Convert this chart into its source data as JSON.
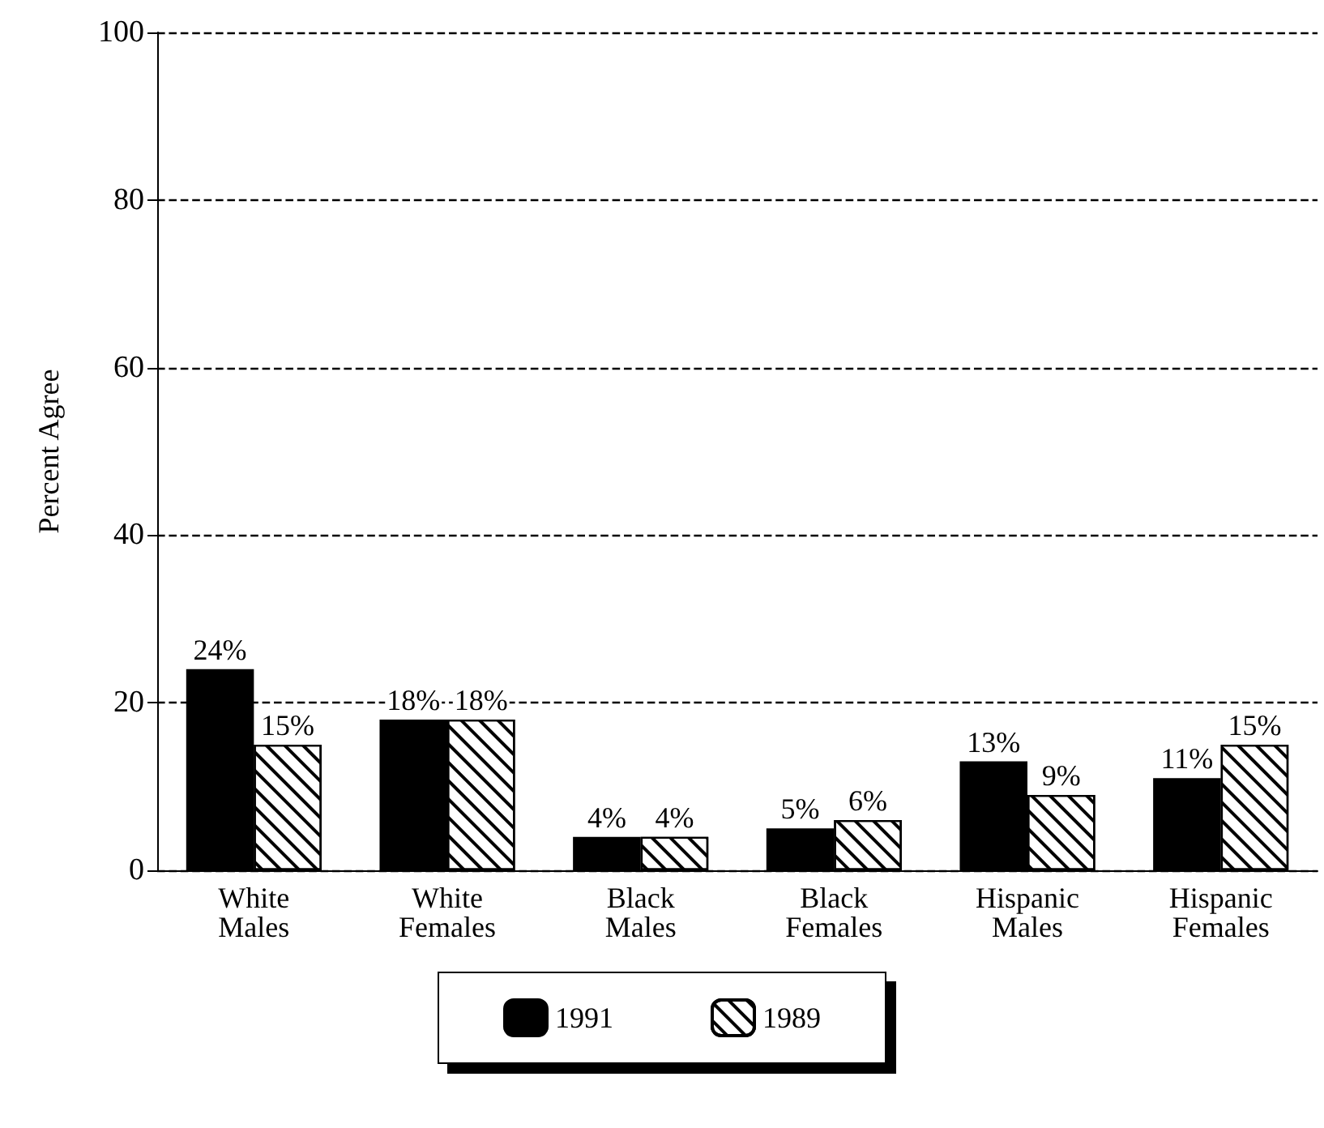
{
  "chart_data": {
    "type": "bar",
    "ylabel": "Percent Agree",
    "categories": [
      "White Males",
      "White Females",
      "Black Males",
      "Black Females",
      "Hispanic Males",
      "Hispanic Females"
    ],
    "series": [
      {
        "name": "1991",
        "color": "#000000",
        "values": [
          24,
          18,
          4,
          5,
          13,
          11
        ],
        "value_labels": [
          "24%",
          "18%",
          "4%",
          "5%",
          "13%",
          "11%"
        ]
      },
      {
        "name": "1989",
        "color": "#ffffff",
        "values": [
          15,
          18,
          4,
          6,
          9,
          15
        ],
        "value_labels": [
          "15%",
          "18%",
          "4%",
          "6%",
          "9%",
          "15%"
        ]
      }
    ],
    "ylim": [
      0,
      100
    ],
    "yticks": [
      0,
      20,
      40,
      60,
      80,
      100
    ],
    "grid": "y",
    "line_style": "dashed",
    "legend": "bottom"
  }
}
